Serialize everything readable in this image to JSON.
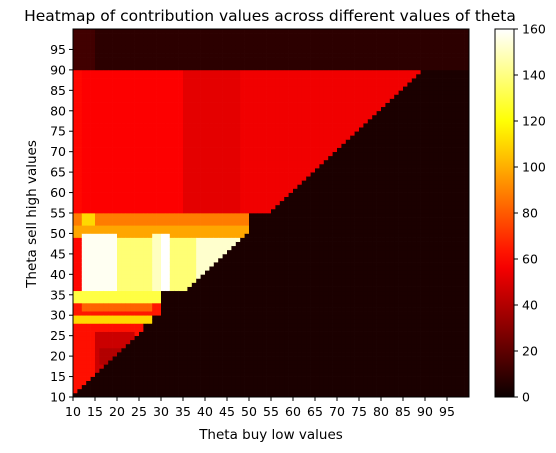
{
  "chart_data": {
    "type": "heatmap",
    "title": "Heatmap of contribution values across different values of theta",
    "xlabel": "Theta buy low values",
    "ylabel": "Theta sell high values",
    "x_range": [
      10,
      100
    ],
    "y_range": [
      10,
      100
    ],
    "x_ticks": [
      10,
      15,
      20,
      25,
      30,
      35,
      40,
      45,
      50,
      55,
      60,
      65,
      70,
      75,
      80,
      85,
      90,
      95
    ],
    "y_ticks": [
      10,
      15,
      20,
      25,
      30,
      35,
      40,
      45,
      50,
      55,
      60,
      65,
      70,
      75,
      80,
      85,
      90,
      95
    ],
    "cell_step": 1,
    "colormap": "hot",
    "colorbar": {
      "range": [
        0,
        160
      ],
      "ticks": [
        0,
        20,
        40,
        60,
        80,
        100,
        120,
        140,
        160
      ]
    },
    "background_value": 4,
    "regions": [
      {
        "x_from": 10,
        "x_to": 100,
        "y_from": 90,
        "y_to": 100,
        "value": 8
      },
      {
        "x_from": 10,
        "x_to": 15,
        "y_from": 90,
        "y_to": 100,
        "value": 13
      },
      {
        "x_from": 10,
        "x_to": 90,
        "y_from": 55,
        "y_to": 90,
        "value": 58,
        "upper_triangle": true
      },
      {
        "x_from": 35,
        "x_to": 48,
        "y_from": 55,
        "y_to": 90,
        "value": 52,
        "upper_triangle": true
      },
      {
        "x_from": 48,
        "x_to": 90,
        "y_from": 55,
        "y_to": 90,
        "value": 55,
        "upper_triangle": true
      },
      {
        "x_from": 10,
        "x_to": 12,
        "y_from": 10,
        "y_to": 90,
        "value": 60,
        "upper_triangle": true
      },
      {
        "x_from": 10,
        "x_to": 50,
        "y_from": 52,
        "y_to": 55,
        "value": 88,
        "upper_triangle": true
      },
      {
        "x_from": 12,
        "x_to": 15,
        "y_from": 52,
        "y_to": 55,
        "value": 110,
        "upper_triangle": true
      },
      {
        "x_from": 10,
        "x_to": 50,
        "y_from": 49,
        "y_to": 52,
        "value": 98,
        "upper_triangle": true
      },
      {
        "x_from": 10,
        "x_to": 50,
        "y_from": 36,
        "y_to": 49,
        "value": 145,
        "upper_triangle": true
      },
      {
        "x_from": 12,
        "x_to": 20,
        "y_from": 36,
        "y_to": 50,
        "value": 158,
        "upper_triangle": true
      },
      {
        "x_from": 20,
        "x_to": 28,
        "y_from": 36,
        "y_to": 49,
        "value": 138,
        "upper_triangle": true
      },
      {
        "x_from": 28,
        "x_to": 30,
        "y_from": 36,
        "y_to": 50,
        "value": 150,
        "upper_triangle": true
      },
      {
        "x_from": 30,
        "x_to": 32,
        "y_from": 36,
        "y_to": 50,
        "value": 160,
        "upper_triangle": true
      },
      {
        "x_from": 32,
        "x_to": 38,
        "y_from": 36,
        "y_to": 49,
        "value": 138,
        "upper_triangle": true
      },
      {
        "x_from": 38,
        "x_to": 48,
        "y_from": 36,
        "y_to": 49,
        "value": 152,
        "upper_triangle": true
      },
      {
        "x_from": 10,
        "x_to": 30,
        "y_from": 33,
        "y_to": 36,
        "value": 130,
        "upper_triangle": true
      },
      {
        "x_from": 10,
        "x_to": 30,
        "y_from": 30,
        "y_to": 33,
        "value": 64,
        "upper_triangle": true
      },
      {
        "x_from": 12,
        "x_to": 28,
        "y_from": 31,
        "y_to": 33,
        "value": 82,
        "upper_triangle": true
      },
      {
        "x_from": 10,
        "x_to": 28,
        "y_from": 28,
        "y_to": 30,
        "value": 110,
        "upper_triangle": true
      },
      {
        "x_from": 10,
        "x_to": 26,
        "y_from": 10,
        "y_to": 28,
        "value": 62,
        "upper_triangle": true
      },
      {
        "x_from": 15,
        "x_to": 24,
        "y_from": 12,
        "y_to": 26,
        "value": 46,
        "upper_triangle": true
      },
      {
        "x_from": 16,
        "x_to": 22,
        "y_from": 18,
        "y_to": 22,
        "value": 40,
        "upper_triangle": true
      },
      {
        "x_from": 12,
        "x_to": 14,
        "y_from": 10,
        "y_to": 28,
        "value": 62,
        "upper_triangle": true
      },
      {
        "x_from": 10,
        "x_to": 12,
        "y_from": 36,
        "y_to": 49,
        "value": 60,
        "upper_triangle": true
      }
    ]
  }
}
